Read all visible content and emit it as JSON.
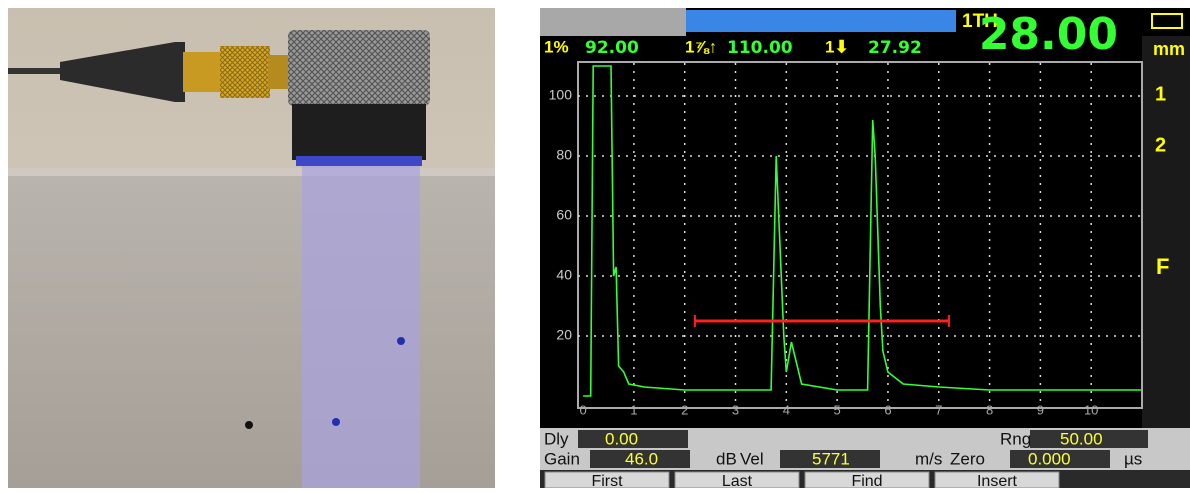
{
  "chart_data": {
    "type": "line",
    "x": [
      0,
      0.15,
      0.2,
      0.55,
      0.6,
      0.65,
      0.7,
      0.8,
      0.9,
      1.2,
      2,
      3,
      3.7,
      3.8,
      3.85,
      3.95,
      4.0,
      4.1,
      4.3,
      5,
      5.5,
      5.6,
      5.7,
      5.75,
      5.85,
      5.9,
      6.0,
      6.3,
      7,
      8,
      9,
      10,
      11
    ],
    "values": [
      0,
      0,
      110,
      110,
      40,
      43,
      10,
      8,
      4,
      3,
      2,
      2,
      2,
      80,
      60,
      20,
      8,
      18,
      4,
      2,
      2,
      2,
      92,
      80,
      30,
      15,
      8,
      4,
      3,
      2,
      2,
      2,
      2
    ],
    "color": "#33ff33",
    "xlim": [
      -0.1,
      11
    ],
    "ylim": [
      -3,
      111
    ],
    "xticks": [
      0,
      1,
      2,
      3,
      4,
      5,
      6,
      7,
      8,
      9,
      10
    ],
    "yticks": [
      20,
      40,
      60,
      80,
      100
    ],
    "grid": true,
    "gate": {
      "start": 2.2,
      "end": 7.2,
      "level": 25,
      "color": "#ff2020"
    }
  },
  "header": {
    "gate_label": "1TH",
    "thickness": "28.00",
    "unit": "mm",
    "amp_label": "1%",
    "amp": "92.00",
    "peak_label": "1⅞↑",
    "peak": "110.00",
    "depth_label": "1⬇",
    "depth": "27.92",
    "side_f": "F",
    "side_1": "1",
    "side_2": "2"
  },
  "footer": {
    "dly_label": "Dly",
    "dly": "0.00",
    "rng_label": "Rng",
    "rng": "50.00",
    "gain_label": "Gain",
    "gain": "46.0",
    "gain_unit": "dB",
    "vel_label": "Vel",
    "vel": "5771",
    "vel_unit": "m/s",
    "zero_label": "Zero",
    "zero": "0.000",
    "zero_unit": "µs",
    "buttons": [
      "First",
      "Last",
      "Find",
      "Insert"
    ]
  }
}
